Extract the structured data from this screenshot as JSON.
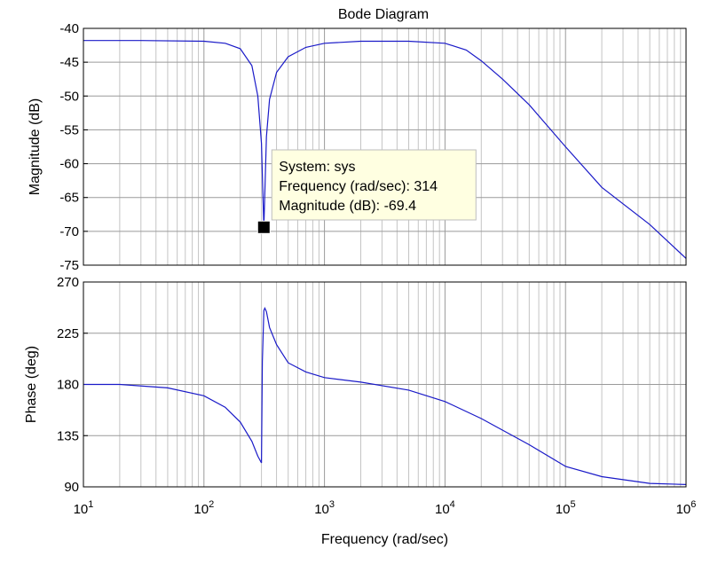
{
  "chart_data": [
    {
      "type": "line",
      "title": "Bode Diagram",
      "ylabel": "Magnitude (dB)",
      "xscale": "log",
      "xlim": [
        10,
        1000000
      ],
      "ylim": [
        -75,
        -40
      ],
      "yticks": [
        "-40",
        "-45",
        "-50",
        "-55",
        "-60",
        "-65",
        "-70",
        "-75"
      ],
      "grid": true,
      "series": [
        {
          "color": "#1a1ac8",
          "x": [
            10,
            30,
            100,
            150,
            200,
            250,
            280,
            300,
            314,
            330,
            350,
            400,
            500,
            700,
            1000,
            2000,
            5000,
            10000,
            15000,
            20000,
            30000,
            50000,
            100000,
            200000,
            500000,
            1000000
          ],
          "y": [
            -41.8,
            -41.8,
            -41.9,
            -42.2,
            -43.0,
            -45.5,
            -50.0,
            -57.0,
            -69.4,
            -56.0,
            -50.5,
            -46.5,
            -44.2,
            -42.8,
            -42.2,
            -41.9,
            -41.9,
            -42.2,
            -43.2,
            -44.8,
            -47.5,
            -51.3,
            -57.5,
            -63.5,
            -69.0,
            -74.0
          ]
        }
      ],
      "datatip": {
        "line1": "System: sys",
        "line2": "Frequency (rad/sec): 314",
        "line3": "Magnitude (dB): -69.4",
        "x": 314,
        "y": -69.4
      }
    },
    {
      "type": "line",
      "ylabel": "Phase (deg)",
      "xlabel": "Frequency  (rad/sec)",
      "xscale": "log",
      "xlim": [
        10,
        1000000
      ],
      "ylim": [
        90,
        270
      ],
      "yticks": [
        "270",
        "225",
        "180",
        "135",
        "90"
      ],
      "xticks": [
        {
          "base": "10",
          "exp": "1",
          "value": 10
        },
        {
          "base": "10",
          "exp": "2",
          "value": 100
        },
        {
          "base": "10",
          "exp": "3",
          "value": 1000
        },
        {
          "base": "10",
          "exp": "4",
          "value": 10000
        },
        {
          "base": "10",
          "exp": "5",
          "value": 100000
        },
        {
          "base": "10",
          "exp": "6",
          "value": 1000000
        }
      ],
      "grid": true,
      "series": [
        {
          "color": "#1a1ac8",
          "x": [
            10,
            20,
            50,
            100,
            150,
            200,
            250,
            280,
            300,
            305,
            314,
            320,
            330,
            350,
            400,
            500,
            700,
            1000,
            2000,
            5000,
            10000,
            20000,
            50000,
            100000,
            200000,
            500000,
            1000000
          ],
          "y": [
            180,
            180,
            177,
            170,
            160,
            147,
            130,
            117,
            111,
            200,
            245,
            247,
            244,
            230,
            215,
            199,
            191,
            186,
            182,
            175,
            165,
            150,
            127,
            108,
            99,
            93,
            92
          ]
        }
      ]
    }
  ]
}
